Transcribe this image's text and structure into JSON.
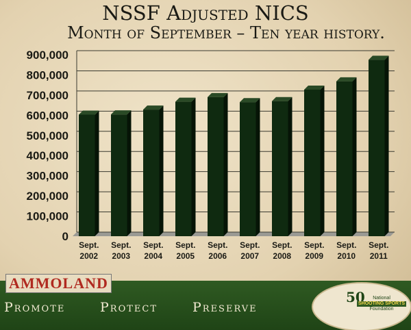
{
  "chart_data": {
    "type": "bar",
    "title": "NSSF Adjusted NICS",
    "subtitle": "Month of September – Ten year history.",
    "categories": [
      [
        "Sept.",
        "2002"
      ],
      [
        "Sept.",
        "2003"
      ],
      [
        "Sept.",
        "2004"
      ],
      [
        "Sept.",
        "2005"
      ],
      [
        "Sept.",
        "2006"
      ],
      [
        "Sept.",
        "2007"
      ],
      [
        "Sept.",
        "2008"
      ],
      [
        "Sept.",
        "2009"
      ],
      [
        "Sept.",
        "2010"
      ],
      [
        "Sept.",
        "2011"
      ]
    ],
    "values": [
      603000,
      604000,
      628000,
      667000,
      690000,
      665000,
      670000,
      727000,
      768000,
      875000
    ],
    "ylim": [
      0,
      900000
    ],
    "yticks": [
      "0",
      "100,000",
      "200,000",
      "300,000",
      "400,000",
      "500,000",
      "600,000",
      "700,000",
      "800,000",
      "900,000"
    ],
    "grid": true,
    "bar_color": "#0f2a10"
  },
  "footer": {
    "logo_text": "AMMOLAND",
    "slogans": [
      "Promote",
      "Protect",
      "Preserve"
    ],
    "nssf_years": "50",
    "nssf_line1": "National",
    "nssf_line2": "SHOOTING SPORTS",
    "nssf_line3": "Foundation"
  }
}
